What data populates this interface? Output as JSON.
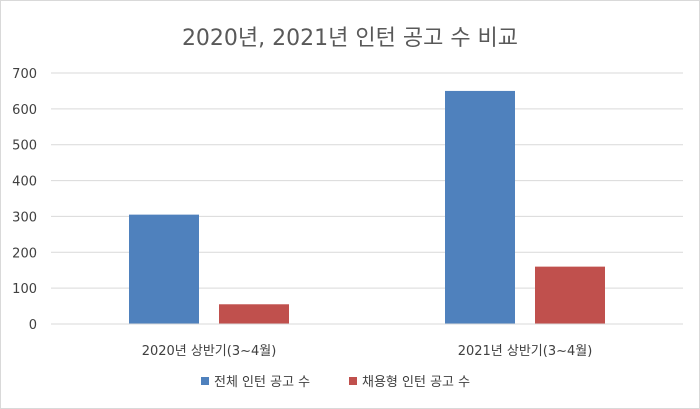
{
  "chart_data": {
    "type": "bar",
    "title": "2020년, 2021년 인턴 공고 수 비교",
    "xlabel": "",
    "ylabel": "",
    "categories": [
      "2020년 상반기(3~4월)",
      "2021년 상반기(3~4월)"
    ],
    "series": [
      {
        "name": "전체 인턴 공고 수",
        "values": [
          305,
          650
        ],
        "color": "#4f81bd"
      },
      {
        "name": "채용형 인턴 공고 수",
        "values": [
          55,
          160
        ],
        "color": "#c0504d"
      }
    ],
    "ylim": [
      0,
      700
    ],
    "yticks": [
      0,
      100,
      200,
      300,
      400,
      500,
      600,
      700
    ],
    "grid": true,
    "legend_position": "bottom"
  }
}
